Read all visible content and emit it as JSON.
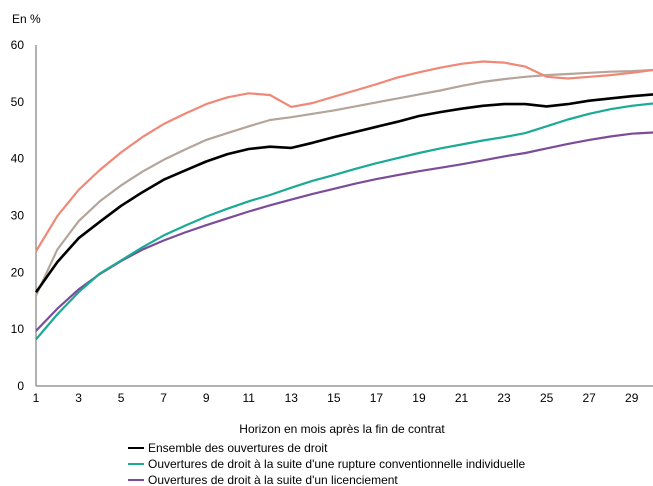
{
  "chart_data": {
    "type": "line",
    "title": "",
    "ylabel": "En %",
    "xlabel": "Horizon en mois après la fin de contrat",
    "xlim": [
      1,
      30
    ],
    "ylim": [
      0,
      60
    ],
    "x_ticks": [
      1,
      3,
      5,
      7,
      9,
      11,
      13,
      15,
      17,
      19,
      21,
      23,
      25,
      27,
      29
    ],
    "y_ticks": [
      0,
      10,
      20,
      30,
      40,
      50,
      60
    ],
    "grid": false,
    "legend_position": "bottom",
    "x": [
      1,
      2,
      3,
      4,
      5,
      6,
      7,
      8,
      9,
      10,
      11,
      12,
      13,
      14,
      15,
      16,
      17,
      18,
      19,
      20,
      21,
      22,
      23,
      24,
      25,
      26,
      27,
      28,
      29,
      30
    ],
    "series": [
      {
        "name": "Ensemble des ouvertures de droit",
        "color": "#000000",
        "in_legend": true,
        "values": [
          16.5,
          21.8,
          26,
          28.9,
          31.7,
          34.1,
          36.3,
          37.9,
          39.5,
          40.8,
          41.7,
          42.1,
          41.9,
          42.8,
          43.8,
          44.7,
          45.6,
          46.5,
          47.5,
          48.2,
          48.8,
          49.3,
          49.6,
          49.6,
          49.2,
          49.6,
          50.2,
          50.6,
          51,
          51.3
        ]
      },
      {
        "name": "Ouvertures de droit à la suite d'une rupture conventionnelle individuelle",
        "color": "#1aaa96",
        "in_legend": true,
        "values": [
          8.2,
          12.6,
          16.5,
          19.8,
          22.1,
          24.4,
          26.5,
          28.2,
          29.8,
          31.2,
          32.5,
          33.6,
          34.9,
          36.1,
          37.1,
          38.2,
          39.2,
          40.1,
          41,
          41.8,
          42.5,
          43.2,
          43.8,
          44.5,
          45.7,
          46.9,
          47.9,
          48.7,
          49.3,
          49.7
        ]
      },
      {
        "name": "Ouvertures de droit à la suite d'un licenciement",
        "color": "#7b4c9a",
        "in_legend": true,
        "values": [
          9.7,
          13.6,
          17,
          19.7,
          22,
          24,
          25.6,
          27,
          28.3,
          29.5,
          30.7,
          31.8,
          32.8,
          33.8,
          34.7,
          35.6,
          36.4,
          37.1,
          37.8,
          38.4,
          39,
          39.7,
          40.4,
          41,
          41.8,
          42.6,
          43.3,
          43.9,
          44.4,
          44.6
        ]
      },
      {
        "name": "",
        "color": "#f08878",
        "in_legend": false,
        "values": [
          23.7,
          29.9,
          34.5,
          38,
          41.1,
          43.8,
          46.1,
          47.9,
          49.6,
          50.8,
          51.5,
          51.2,
          49.1,
          49.8,
          50.9,
          52,
          53.1,
          54.3,
          55.2,
          56,
          56.7,
          57.1,
          56.9,
          56.2,
          54.4,
          54.1,
          54.4,
          54.7,
          55.1,
          55.6
        ]
      },
      {
        "name": "",
        "color": "#b4a59a",
        "in_legend": false,
        "values": [
          15.9,
          24,
          29,
          32.5,
          35.3,
          37.7,
          39.8,
          41.6,
          43.3,
          44.5,
          45.7,
          46.8,
          47.3,
          47.9,
          48.5,
          49.2,
          49.9,
          50.6,
          51.3,
          52,
          52.8,
          53.5,
          54,
          54.4,
          54.7,
          54.9,
          55.1,
          55.3,
          55.4,
          55.6
        ]
      }
    ],
    "legend_entries": [
      "Ensemble des ouvertures de droit",
      "Ouvertures de droit à la suite d'une rupture conventionnelle individuelle",
      "Ouvertures de droit à la suite d'un licenciement"
    ]
  }
}
